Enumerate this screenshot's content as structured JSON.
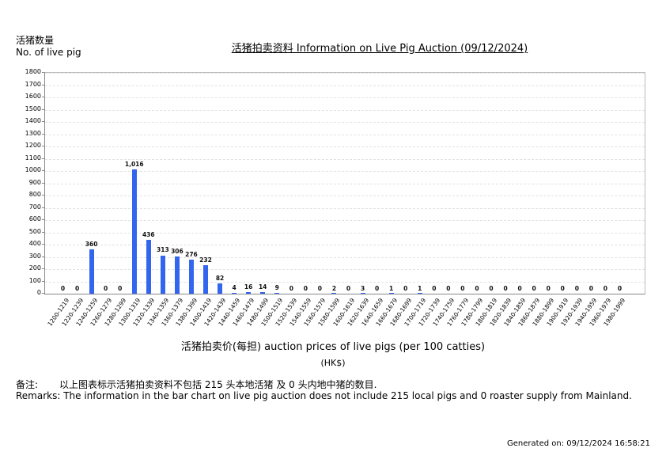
{
  "header": {
    "y_axis_label_cn": "活猪数量",
    "y_axis_label_en": "No. of live pig",
    "title": "活猪拍卖资料 Information on Live Pig Auction (09/12/2024)"
  },
  "footer": {
    "x_axis_label": "活猪拍卖价(每担) auction prices of live pigs (per 100 catties)",
    "x_axis_unit": "(HK$)",
    "remark_cn_tag": "备注:",
    "remark_cn": "以上图表标示活猪拍卖资料不包括 215 头本地活猪 及 0 头内地中猪的数目.",
    "remark_en": "Remarks: The information in the bar chart on live pig auction does not include 215 local pigs and 0 roaster supply from Mainland.",
    "generated": "Generated on: 09/12/2024 16:58:21"
  },
  "chart_data": {
    "type": "bar",
    "title": "活猪拍卖资料 Information on Live Pig Auction (09/12/2024)",
    "xlabel": "活猪拍卖价(每担) auction prices of live pigs (per 100 catties) (HK$)",
    "ylabel": "活猪数量 No. of live pig",
    "ylim": [
      0,
      1800
    ],
    "yticks": [
      0,
      100,
      200,
      300,
      400,
      500,
      600,
      700,
      800,
      900,
      1000,
      1100,
      1200,
      1300,
      1400,
      1500,
      1600,
      1700,
      1800
    ],
    "grid": true,
    "legend": "none",
    "bar_color": "#3366ee",
    "categories": [
      "1200-1219",
      "1220-1239",
      "1240-1259",
      "1260-1279",
      "1280-1299",
      "1300-1319",
      "1320-1339",
      "1340-1359",
      "1360-1379",
      "1380-1399",
      "1400-1419",
      "1420-1439",
      "1440-1459",
      "1460-1479",
      "1480-1499",
      "1500-1519",
      "1520-1539",
      "1540-1559",
      "1560-1579",
      "1580-1599",
      "1600-1619",
      "1620-1639",
      "1640-1659",
      "1660-1679",
      "1680-1699",
      "1700-1719",
      "1720-1739",
      "1740-1759",
      "1760-1779",
      "1780-1799",
      "1800-1819",
      "1820-1839",
      "1840-1859",
      "1860-1879",
      "1880-1899",
      "1900-1919",
      "1920-1939",
      "1940-1959",
      "1960-1979",
      "1980-1999"
    ],
    "values": [
      0,
      0,
      360,
      0,
      0,
      1016,
      436,
      313,
      306,
      276,
      232,
      82,
      4,
      16,
      14,
      9,
      0,
      0,
      0,
      2,
      0,
      3,
      0,
      1,
      0,
      1,
      0,
      0,
      0,
      0,
      0,
      0,
      0,
      0,
      0,
      0,
      0,
      0,
      0,
      0
    ],
    "value_labels": [
      "0",
      "0",
      "360",
      "0",
      "0",
      "1,016",
      "436",
      "313",
      "306",
      "276",
      "232",
      "82",
      "4",
      "16",
      "14",
      "9",
      "0",
      "0",
      "0",
      "2",
      "0",
      "3",
      "0",
      "1",
      "0",
      "1",
      "0",
      "0",
      "0",
      "0",
      "0",
      "0",
      "0",
      "0",
      "0",
      "0",
      "0",
      "0",
      "0",
      "0"
    ]
  }
}
